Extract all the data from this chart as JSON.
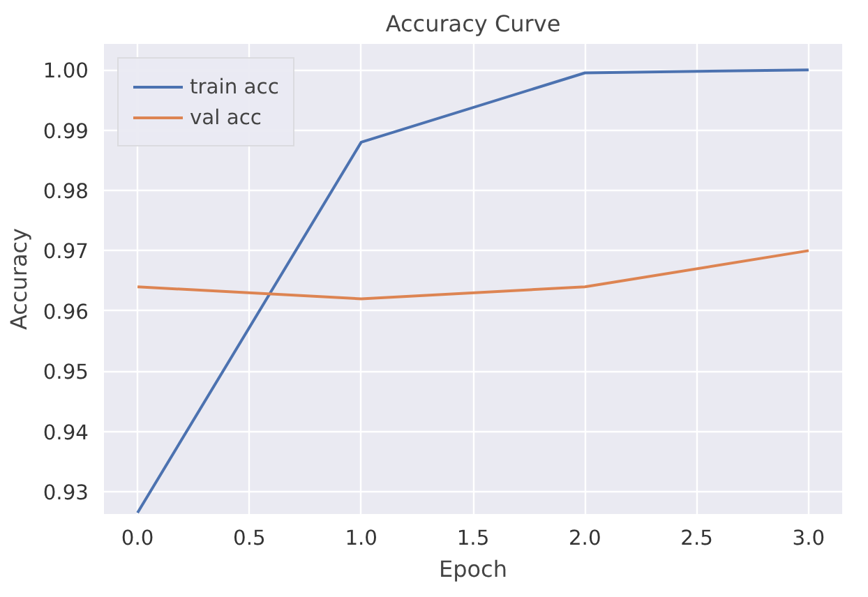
{
  "chart_data": {
    "type": "line",
    "title": "Accuracy Curve",
    "xlabel": "Epoch",
    "ylabel": "Accuracy",
    "x": [
      0,
      1,
      2,
      3
    ],
    "series": [
      {
        "name": "train acc",
        "color": "#4c72b0",
        "values": [
          0.9265,
          0.988,
          0.9995,
          1.0
        ]
      },
      {
        "name": "val acc",
        "color": "#dd8452",
        "values": [
          0.964,
          0.962,
          0.964,
          0.97
        ]
      }
    ],
    "xlim": [
      -0.15,
      3.15
    ],
    "ylim": [
      0.9263,
      1.0043
    ],
    "xticks": [
      {
        "value": 0,
        "label": "0.0"
      },
      {
        "value": 0.5,
        "label": "0.5"
      },
      {
        "value": 1,
        "label": "1.0"
      },
      {
        "value": 1.5,
        "label": "1.5"
      },
      {
        "value": 2,
        "label": "2.0"
      },
      {
        "value": 2.5,
        "label": "2.5"
      },
      {
        "value": 3,
        "label": "3.0"
      }
    ],
    "yticks": [
      {
        "value": 0.93,
        "label": "0.93"
      },
      {
        "value": 0.94,
        "label": "0.94"
      },
      {
        "value": 0.95,
        "label": "0.95"
      },
      {
        "value": 0.96,
        "label": "0.96"
      },
      {
        "value": 0.97,
        "label": "0.97"
      },
      {
        "value": 0.98,
        "label": "0.98"
      },
      {
        "value": 0.99,
        "label": "0.99"
      },
      {
        "value": 1.0,
        "label": "1.00"
      }
    ],
    "grid": true,
    "legend": "top left",
    "line_style": "solid",
    "marker": "none"
  }
}
